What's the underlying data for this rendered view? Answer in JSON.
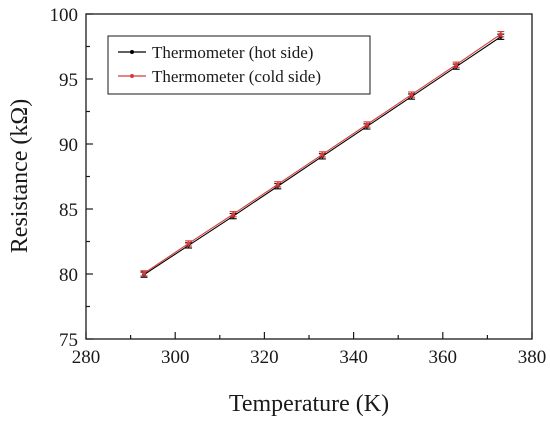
{
  "chart_data": {
    "type": "line",
    "xlabel": "Temperature (K)",
    "ylabel": "Resistance (kΩ)",
    "xlim": [
      280,
      380
    ],
    "ylim": [
      75,
      100
    ],
    "xticks": [
      280,
      300,
      320,
      340,
      360,
      380
    ],
    "yticks": [
      75,
      80,
      85,
      90,
      95,
      100
    ],
    "x_minor_step": 10,
    "y_minor_step": 2.5,
    "grid": false,
    "legend_position": "top-left",
    "x": [
      293,
      303,
      313,
      323,
      333,
      343,
      353,
      363,
      373
    ],
    "series": [
      {
        "name": "Thermometer (hot side)",
        "color": "#000000",
        "values": [
          79.95,
          82.2,
          84.45,
          86.75,
          89.05,
          91.35,
          93.65,
          95.95,
          98.25
        ],
        "error": 0.2
      },
      {
        "name": "Thermometer (cold side)",
        "color": "#d63a3a",
        "values": [
          80.05,
          82.35,
          84.6,
          86.9,
          89.2,
          91.5,
          93.8,
          96.1,
          98.45
        ],
        "error": 0.2
      }
    ]
  }
}
